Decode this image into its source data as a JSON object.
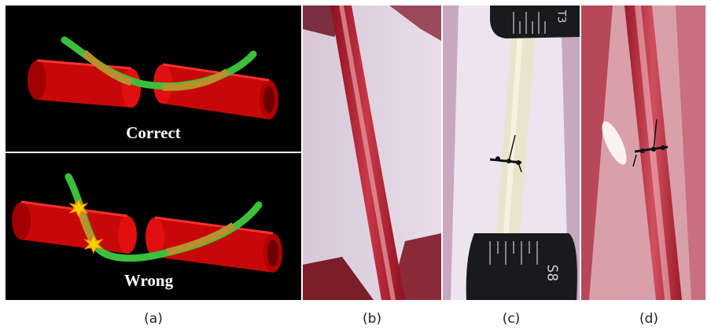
{
  "panel_a": {
    "top_label": "Correct",
    "bottom_label": "Wrong"
  },
  "panel_c": {
    "ruler_top_text": "T3",
    "ruler_bottom_text": "S8"
  },
  "captions": {
    "a": "(a)",
    "b": "(b)",
    "c": "(c)",
    "d": "(d)"
  },
  "colors": {
    "vessel_red": "#e01010",
    "catheter_green": "#3cc03c",
    "overlap_tan": "#b8902c",
    "star_yellow": "#ffd000",
    "background_black": "#000000"
  }
}
